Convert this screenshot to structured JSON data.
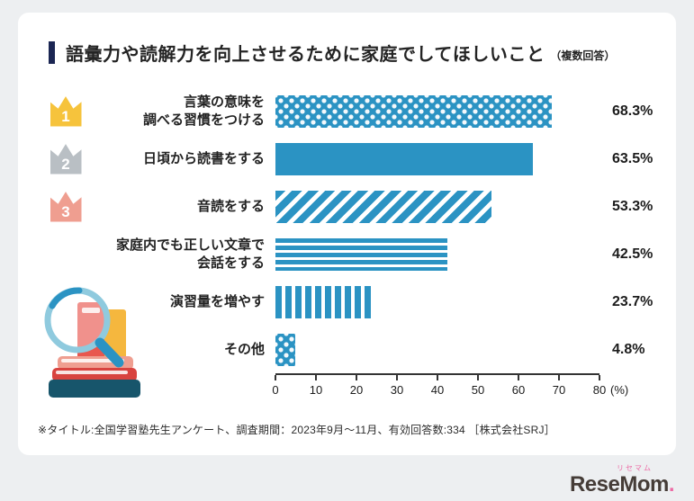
{
  "header": {
    "title": "語彙力や読解力を向上させるために家庭でしてほしいこと",
    "suffix": "（複数回答）"
  },
  "footnote": "※タイトル:全国学習塾先生アンケート、調査期間：2023年9月～11月、有効回答数:334 ［株式会社SRJ］",
  "logo": {
    "kana": "リセマム",
    "text": "ReseMom",
    "period": "."
  },
  "colors": {
    "bar": "#2b93c3",
    "rank1_crown": "#f6c33c",
    "rank2_crown": "#b9bfc4",
    "rank3_crown": "#ef9e90",
    "title_accent": "#1b2653",
    "logo_pink": "#ec6ba5",
    "background": "#edeff1"
  },
  "chart_data": {
    "type": "bar",
    "orientation": "horizontal",
    "title": "語彙力や読解力を向上させるために家庭でしてほしいこと（複数回答）",
    "categories": [
      "言葉の意味を調べる習慣をつける",
      "日頃から読書をする",
      "音読をする",
      "家庭内でも正しい文章で会話をする",
      "演習量を増やす",
      "その他"
    ],
    "display_labels": [
      "言葉の意味を\n調べる習慣をつける",
      "日頃から読書をする",
      "音読をする",
      "家庭内でも正しい文章で\n会話をする",
      "演習量を増やす",
      "その他"
    ],
    "values": [
      68.3,
      63.5,
      53.3,
      42.5,
      23.7,
      4.8
    ],
    "value_labels": [
      "68.3%",
      "63.5%",
      "53.3%",
      "42.5%",
      "23.7%",
      "4.8%"
    ],
    "ranks": [
      1,
      2,
      3,
      null,
      null,
      null
    ],
    "rank_colors": [
      "#f6c33c",
      "#b9bfc4",
      "#ef9e90",
      null,
      null,
      null
    ],
    "patterns": [
      "dots",
      "solid",
      "diagonal",
      "horizontal",
      "vertical",
      "dots"
    ],
    "xlim": [
      0,
      80
    ],
    "x_ticks": [
      0,
      10,
      20,
      30,
      40,
      50,
      60,
      70,
      80
    ],
    "x_unit": "(%)",
    "grid": false,
    "legend": "none",
    "source_note": "※タイトル:全国学習塾先生アンケート、調査期間：2023年9月～11月、有効回答数:334 ［株式会社SRJ］"
  }
}
